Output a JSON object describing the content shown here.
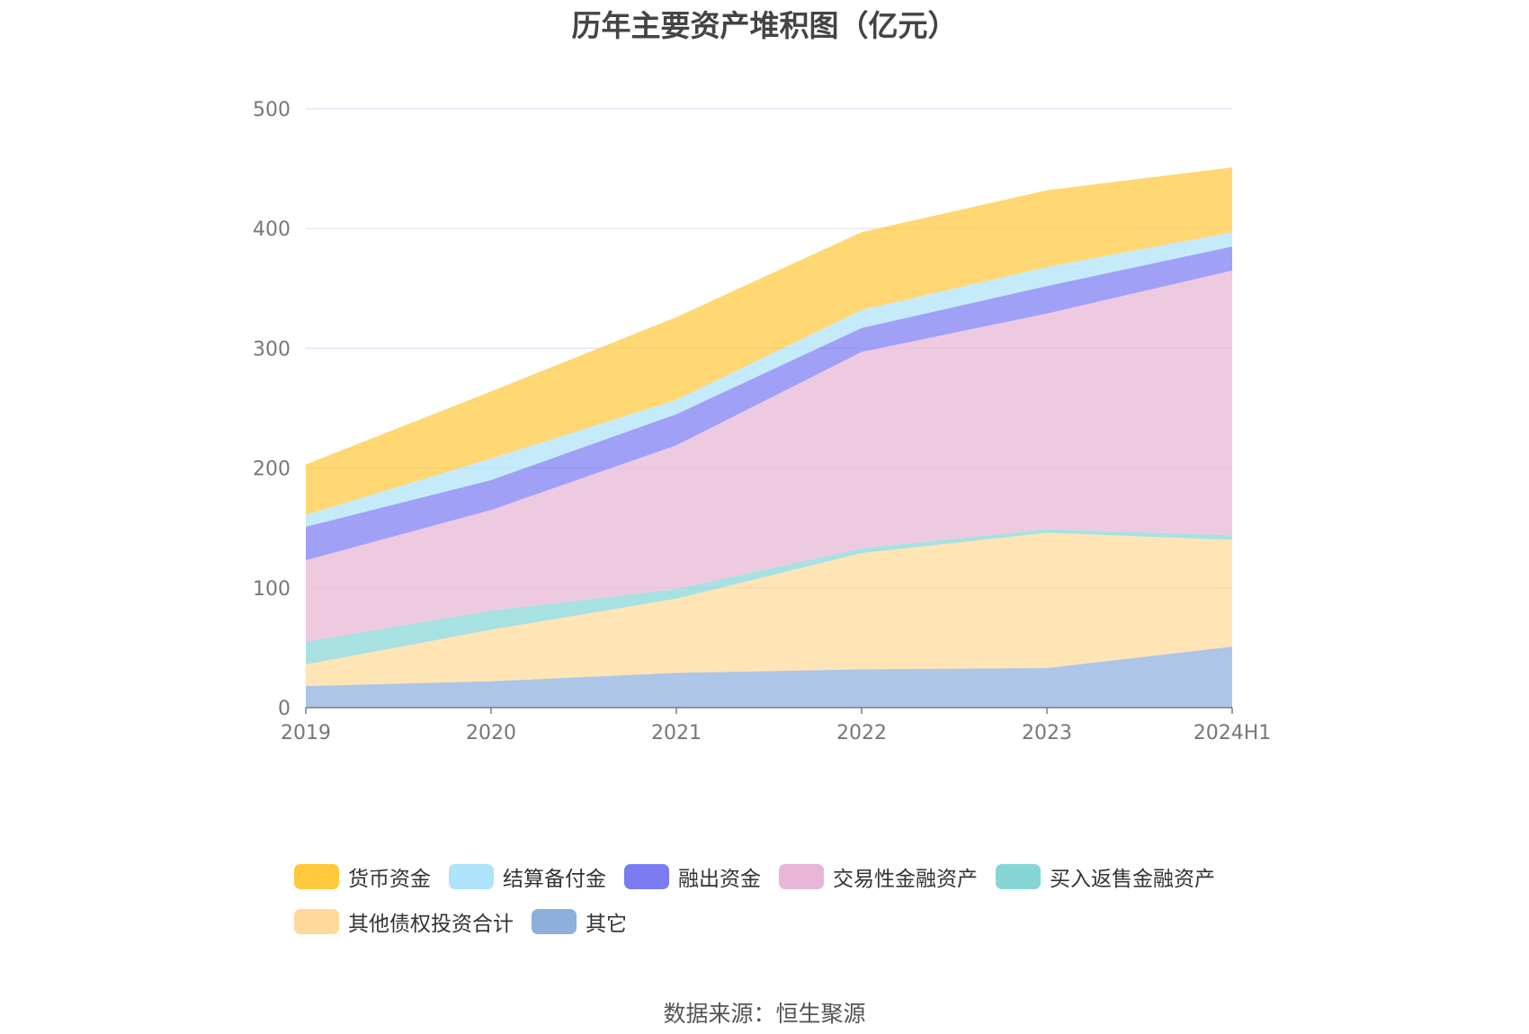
{
  "chart_data": {
    "type": "area",
    "stacked": true,
    "title": "历年主要资产堆积图（亿元）",
    "categories": [
      "2019",
      "2020",
      "2021",
      "2022",
      "2023",
      "2024H1"
    ],
    "ylim": [
      0,
      500
    ],
    "yticks": [
      0,
      100,
      200,
      300,
      400,
      500
    ],
    "grid": true,
    "legend_position": "bottom",
    "series": [
      {
        "name": "其它",
        "color": "#8EAEDC",
        "values": [
          18,
          22,
          29,
          32,
          33,
          51
        ]
      },
      {
        "name": "其他债权投资合计",
        "color": "#FFD99A",
        "values": [
          18,
          43,
          62,
          97,
          113,
          89
        ]
      },
      {
        "name": "买入返售金融资产",
        "color": "#86D6D6",
        "values": [
          19,
          16,
          8,
          4,
          3,
          4
        ]
      },
      {
        "name": "交易性金融资产",
        "color": "#E8B6D6",
        "values": [
          68,
          84,
          120,
          164,
          180,
          221
        ]
      },
      {
        "name": "融出资金",
        "color": "#7B7BF2",
        "values": [
          28,
          25,
          26,
          20,
          23,
          20
        ]
      },
      {
        "name": "结算备付金",
        "color": "#AEE3FA",
        "values": [
          10,
          18,
          12,
          15,
          16,
          12
        ]
      },
      {
        "name": "货币资金",
        "color": "#FFC83D",
        "values": [
          42,
          56,
          69,
          65,
          64,
          54
        ]
      }
    ],
    "legend_order": [
      "货币资金",
      "结算备付金",
      "融出资金",
      "交易性金融资产",
      "买入返售金融资产",
      "其他债权投资合计",
      "其它"
    ]
  },
  "source": "数据来源：恒生聚源"
}
